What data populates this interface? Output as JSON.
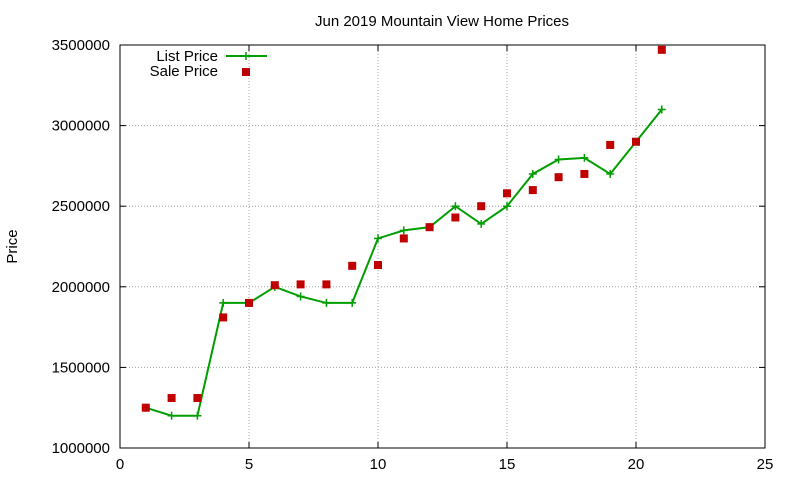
{
  "chart_data": {
    "type": "line",
    "title": "Jun 2019 Mountain View Home Prices",
    "xlabel": "",
    "ylabel": "Price",
    "xlim": [
      0,
      25
    ],
    "ylim": [
      1000000,
      3500000
    ],
    "xticks": [
      0,
      5,
      10,
      15,
      20,
      25
    ],
    "yticks": [
      1000000,
      1500000,
      2000000,
      2500000,
      3000000,
      3500000
    ],
    "grid": true,
    "legend_position": "top-left",
    "series": [
      {
        "name": "List Price",
        "style": "line-with-plus-markers",
        "color": "#009e00",
        "points": [
          [
            1,
            1250000
          ],
          [
            2,
            1200000
          ],
          [
            3,
            1200000
          ],
          [
            4,
            1900000
          ],
          [
            5,
            1900000
          ],
          [
            6,
            2000000
          ],
          [
            7,
            1940000
          ],
          [
            8,
            1900000
          ],
          [
            9,
            1900000
          ],
          [
            10,
            2300000
          ],
          [
            11,
            2350000
          ],
          [
            12,
            2370000
          ],
          [
            13,
            2500000
          ],
          [
            14,
            2390000
          ],
          [
            15,
            2500000
          ],
          [
            16,
            2700000
          ],
          [
            17,
            2790000
          ],
          [
            18,
            2800000
          ],
          [
            19,
            2700000
          ],
          [
            20,
            2900000
          ],
          [
            21,
            3100000
          ]
        ]
      },
      {
        "name": "Sale Price",
        "style": "square-markers",
        "color": "#c00000",
        "points": [
          [
            1,
            1250000
          ],
          [
            2,
            1310000
          ],
          [
            3,
            1310000
          ],
          [
            4,
            1810000
          ],
          [
            5,
            1900000
          ],
          [
            6,
            2010000
          ],
          [
            7,
            2015000
          ],
          [
            8,
            2015000
          ],
          [
            9,
            2130000
          ],
          [
            10,
            2135000
          ],
          [
            11,
            2300000
          ],
          [
            12,
            2370000
          ],
          [
            13,
            2430000
          ],
          [
            14,
            2500000
          ],
          [
            15,
            2580000
          ],
          [
            16,
            2600000
          ],
          [
            17,
            2680000
          ],
          [
            18,
            2700000
          ],
          [
            19,
            2880000
          ],
          [
            20,
            2900000
          ],
          [
            21,
            3470000
          ]
        ]
      }
    ]
  }
}
